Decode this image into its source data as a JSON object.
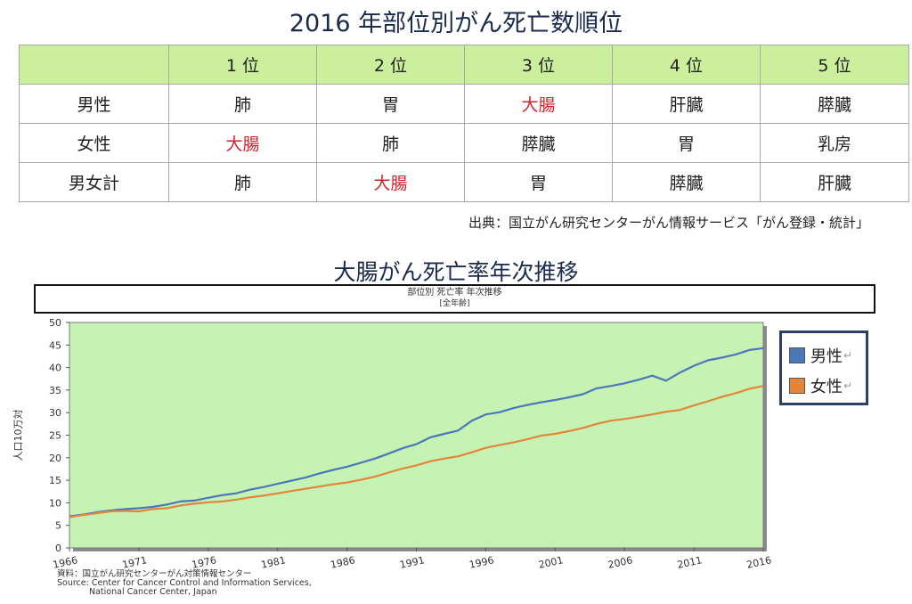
{
  "ranking": {
    "title": "2016 年部位別がん死亡数順位",
    "header": [
      "",
      "1 位",
      "2 位",
      "3 位",
      "4 位",
      "5 位"
    ],
    "rows": [
      {
        "label": "男性",
        "cells": [
          "肺",
          "胃",
          "大腸",
          "肝臓",
          "膵臓"
        ]
      },
      {
        "label": "女性",
        "cells": [
          "大腸",
          "肺",
          "膵臓",
          "胃",
          "乳房"
        ]
      },
      {
        "label": "男女計",
        "cells": [
          "肺",
          "大腸",
          "胃",
          "膵臓",
          "肝臓"
        ]
      }
    ],
    "highlight_text": "大腸",
    "highlight_color": "#d0232b",
    "header_bg": "#ccef9e",
    "source": "出典：国立がん研究センターがん情報サービス「がん登録・統計」"
  },
  "chart_section_title": "大腸がん死亡率年次推移",
  "chart_data": {
    "type": "line",
    "title": "部位別 死亡率 年次推移",
    "subtitle": "[全年齢]",
    "ylabel": "人口10万対",
    "xlabel": "",
    "ylim": [
      0,
      50
    ],
    "yticks": [
      0,
      5,
      10,
      15,
      20,
      25,
      30,
      35,
      40,
      45,
      50
    ],
    "xticks": [
      "1966",
      "1971",
      "1976",
      "1981",
      "1986",
      "1991",
      "1996",
      "2001",
      "2006",
      "2011",
      "2016"
    ],
    "x": [
      1966,
      1967,
      1968,
      1969,
      1970,
      1971,
      1972,
      1973,
      1974,
      1975,
      1976,
      1977,
      1978,
      1979,
      1980,
      1981,
      1982,
      1983,
      1984,
      1985,
      1986,
      1987,
      1988,
      1989,
      1990,
      1991,
      1992,
      1993,
      1994,
      1995,
      1996,
      1997,
      1998,
      1999,
      2000,
      2001,
      2002,
      2003,
      2004,
      2005,
      2006,
      2007,
      2008,
      2009,
      2010,
      2011,
      2012,
      2013,
      2014,
      2015,
      2016
    ],
    "series": [
      {
        "name": "男性",
        "color": "#4a78b8",
        "values": [
          7.0,
          7.4,
          7.9,
          8.3,
          8.6,
          8.8,
          9.1,
          9.6,
          10.3,
          10.5,
          11.1,
          11.7,
          12.1,
          12.9,
          13.5,
          14.2,
          14.9,
          15.6,
          16.5,
          17.3,
          18.0,
          18.9,
          19.8,
          20.9,
          22.1,
          23.0,
          24.5,
          25.3,
          26.0,
          28.2,
          29.6,
          30.1,
          31.0,
          31.7,
          32.3,
          32.8,
          33.4,
          34.1,
          35.4,
          35.9,
          36.5,
          37.3,
          38.2,
          37.1,
          38.9,
          40.4,
          41.6,
          42.2,
          42.9,
          43.9,
          44.3
        ]
      },
      {
        "name": "女性",
        "color": "#e3863a",
        "values": [
          6.8,
          7.3,
          7.7,
          8.1,
          8.2,
          8.1,
          8.6,
          8.8,
          9.4,
          9.8,
          10.1,
          10.3,
          10.7,
          11.2,
          11.6,
          12.1,
          12.6,
          13.1,
          13.6,
          14.1,
          14.5,
          15.1,
          15.8,
          16.7,
          17.6,
          18.3,
          19.2,
          19.8,
          20.3,
          21.2,
          22.2,
          22.8,
          23.4,
          24.1,
          24.9,
          25.3,
          25.9,
          26.6,
          27.5,
          28.2,
          28.6,
          29.1,
          29.6,
          30.2,
          30.6,
          31.6,
          32.5,
          33.5,
          34.3,
          35.3,
          35.9
        ]
      }
    ],
    "legend_position": "right",
    "grid": false,
    "plot_bg": "#c6f2b4",
    "source_lines": [
      "資料：国立がん研究センターがん対策情報センター",
      "Source: Center for Cancer Control and Information Services,",
      "National Cancer Center, Japan"
    ]
  }
}
